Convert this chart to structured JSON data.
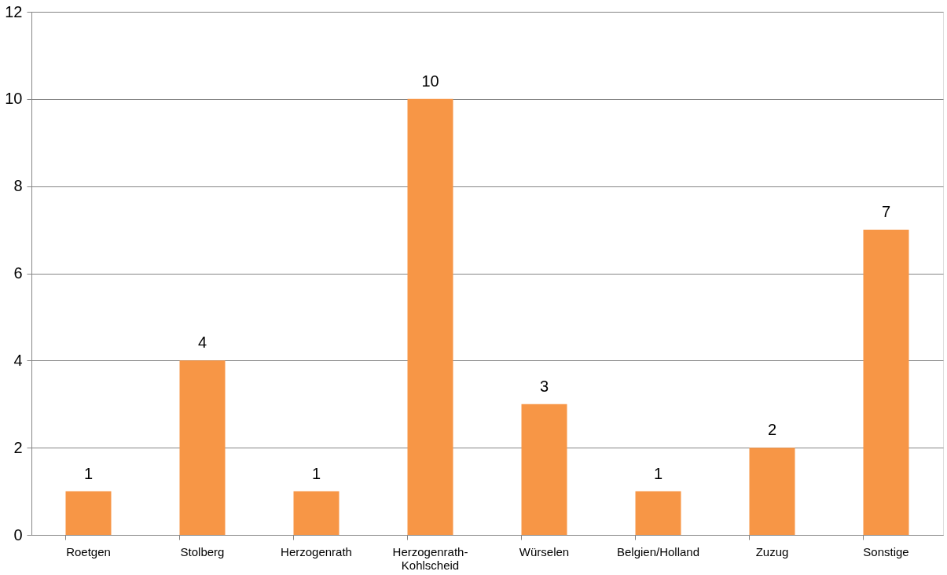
{
  "chart_data": {
    "type": "bar",
    "categories": [
      "Roetgen",
      "Stolberg",
      "Herzogenrath",
      "Herzogenrath-Kohlscheid",
      "Würselen",
      "Belgien/Holland",
      "Zuzug",
      "Sonstige"
    ],
    "values": [
      1,
      4,
      1,
      10,
      3,
      1,
      2,
      7
    ],
    "color": "#f79646",
    "ylim": [
      0,
      12
    ],
    "yticks": [
      0,
      2,
      4,
      6,
      8,
      10,
      12
    ],
    "grid": "y",
    "data_labels": true
  }
}
